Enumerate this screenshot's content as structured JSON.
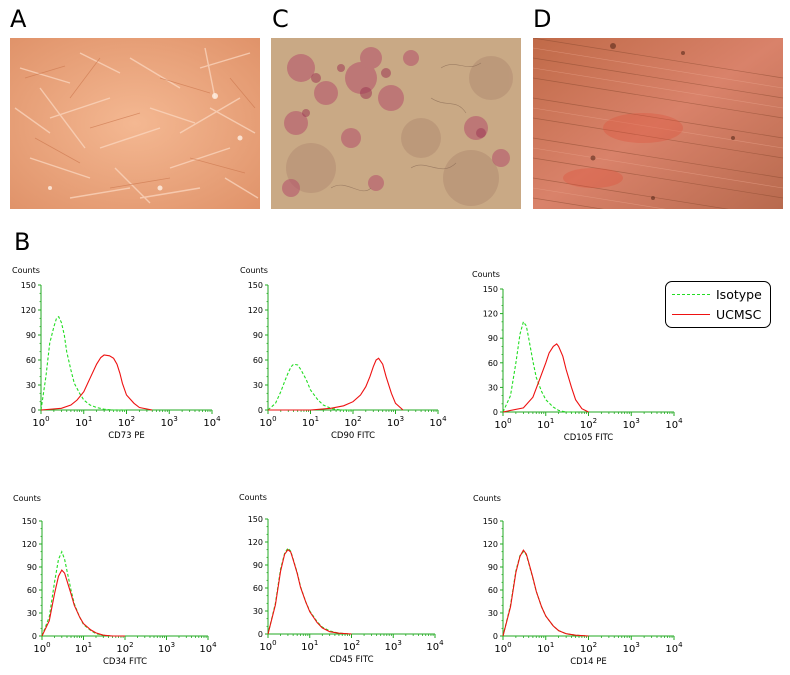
{
  "panels": {
    "a": "A",
    "b": "B",
    "c": "C",
    "d": "D"
  },
  "legend": {
    "isotype": "Isotype",
    "ucmsc": "UCMSC"
  },
  "colors": {
    "isotype": "#22dd22",
    "ucmsc": "#ee1111",
    "axis": "#22aa22"
  },
  "chart_data": [
    {
      "type": "line",
      "title": "",
      "ylabel": "Counts",
      "xlabel": "CD73 PE",
      "x_scale": "log",
      "xlim": [
        1,
        10000
      ],
      "ylim": [
        0,
        150
      ],
      "yticks": [
        "0",
        "30",
        "60",
        "90",
        "120",
        "150"
      ],
      "series": [
        {
          "name": "Isotype",
          "x": [
            1,
            1.3,
            1.6,
            2,
            2.3,
            2.6,
            3,
            3.5,
            4,
            5,
            6,
            8,
            10,
            14,
            20,
            30,
            50,
            100
          ],
          "values": [
            0,
            40,
            80,
            100,
            110,
            112,
            105,
            90,
            70,
            48,
            32,
            20,
            12,
            6,
            3,
            1,
            0,
            0
          ]
        },
        {
          "name": "UCMSC",
          "x": [
            1,
            3,
            5,
            7,
            10,
            14,
            20,
            25,
            30,
            40,
            50,
            60,
            70,
            80,
            100,
            150,
            200,
            400
          ],
          "values": [
            0,
            2,
            6,
            12,
            22,
            38,
            55,
            63,
            66,
            65,
            62,
            55,
            44,
            32,
            18,
            8,
            3,
            0
          ]
        }
      ]
    },
    {
      "type": "line",
      "title": "",
      "ylabel": "Counts",
      "xlabel": "CD90 FITC",
      "x_scale": "log",
      "xlim": [
        1,
        10000
      ],
      "ylim": [
        0,
        150
      ],
      "yticks": [
        "0",
        "30",
        "60",
        "90",
        "120",
        "150"
      ],
      "series": [
        {
          "name": "Isotype",
          "x": [
            1,
            1.5,
            2,
            2.5,
            3,
            3.5,
            4,
            5,
            6,
            8,
            10,
            15,
            20,
            30,
            50,
            100
          ],
          "values": [
            0,
            8,
            22,
            35,
            45,
            52,
            55,
            54,
            48,
            36,
            24,
            12,
            6,
            2,
            0,
            0
          ]
        },
        {
          "name": "UCMSC",
          "x": [
            1,
            10,
            30,
            60,
            100,
            150,
            200,
            250,
            300,
            350,
            400,
            500,
            600,
            800,
            1000,
            1500
          ],
          "values": [
            0,
            0,
            2,
            5,
            10,
            18,
            28,
            40,
            52,
            60,
            62,
            55,
            40,
            20,
            8,
            0
          ]
        }
      ]
    },
    {
      "type": "line",
      "title": "",
      "ylabel": "Counts",
      "xlabel": "CD105 FITC",
      "x_scale": "log",
      "xlim": [
        1,
        10000
      ],
      "ylim": [
        0,
        150
      ],
      "yticks": [
        "0",
        "30",
        "60",
        "90",
        "120",
        "150"
      ],
      "series": [
        {
          "name": "Isotype",
          "x": [
            1,
            1.5,
            2,
            2.5,
            3,
            3.5,
            4,
            5,
            6,
            8,
            10,
            15,
            20,
            30,
            50
          ],
          "values": [
            0,
            20,
            60,
            95,
            110,
            105,
            90,
            62,
            42,
            25,
            15,
            6,
            2,
            0,
            0
          ]
        },
        {
          "name": "UCMSC",
          "x": [
            1,
            3,
            5,
            7,
            10,
            12,
            15,
            18,
            20,
            25,
            30,
            40,
            50,
            70,
            100
          ],
          "values": [
            0,
            5,
            18,
            38,
            60,
            72,
            80,
            83,
            80,
            68,
            52,
            30,
            15,
            4,
            0
          ]
        }
      ]
    },
    {
      "type": "line",
      "title": "",
      "ylabel": "Counts",
      "xlabel": "CD34 FITC",
      "x_scale": "log",
      "xlim": [
        1,
        10000
      ],
      "ylim": [
        0,
        150
      ],
      "yticks": [
        "0",
        "30",
        "60",
        "90",
        "120",
        "150"
      ],
      "series": [
        {
          "name": "Isotype",
          "x": [
            1,
            1.5,
            2,
            2.5,
            3,
            3.5,
            4,
            5,
            6,
            8,
            10,
            15,
            20,
            30,
            50,
            100
          ],
          "values": [
            0,
            25,
            70,
            100,
            110,
            100,
            85,
            60,
            42,
            25,
            15,
            7,
            3,
            1,
            0,
            0
          ]
        },
        {
          "name": "UCMSC",
          "x": [
            1,
            1.5,
            2,
            2.5,
            3,
            3.5,
            4,
            5,
            6,
            8,
            10,
            15,
            20,
            30,
            50,
            100
          ],
          "values": [
            0,
            20,
            55,
            78,
            86,
            82,
            72,
            55,
            40,
            25,
            16,
            8,
            4,
            1,
            0,
            0
          ]
        }
      ]
    },
    {
      "type": "line",
      "title": "",
      "ylabel": "Counts",
      "xlabel": "CD45 FITC",
      "x_scale": "log",
      "xlim": [
        1,
        10000
      ],
      "ylim": [
        0,
        150
      ],
      "yticks": [
        "0",
        "30",
        "60",
        "90",
        "120",
        "150"
      ],
      "series": [
        {
          "name": "Isotype",
          "x": [
            1,
            1.5,
            2,
            2.5,
            3,
            3.5,
            4,
            5,
            6,
            8,
            10,
            15,
            20,
            30,
            50,
            100
          ],
          "values": [
            0,
            40,
            85,
            105,
            112,
            108,
            98,
            80,
            62,
            42,
            30,
            16,
            9,
            4,
            1,
            0
          ]
        },
        {
          "name": "UCMSC",
          "x": [
            1,
            1.5,
            2,
            2.5,
            3,
            3.5,
            4,
            5,
            6,
            8,
            10,
            15,
            20,
            30,
            50,
            100
          ],
          "values": [
            0,
            38,
            82,
            104,
            110,
            107,
            97,
            79,
            61,
            42,
            29,
            15,
            8,
            3,
            1,
            0
          ]
        }
      ]
    },
    {
      "type": "line",
      "title": "",
      "ylabel": "Counts",
      "xlabel": "CD14 PE",
      "x_scale": "log",
      "xlim": [
        1,
        10000
      ],
      "ylim": [
        0,
        150
      ],
      "yticks": [
        "0",
        "30",
        "60",
        "90",
        "120",
        "150"
      ],
      "series": [
        {
          "name": "Isotype",
          "x": [
            1,
            1.5,
            2,
            2.5,
            3,
            3.5,
            4,
            5,
            6,
            8,
            10,
            15,
            20,
            30,
            50,
            100
          ],
          "values": [
            0,
            40,
            85,
            105,
            110,
            106,
            95,
            75,
            58,
            38,
            26,
            13,
            7,
            3,
            1,
            0
          ]
        },
        {
          "name": "UCMSC",
          "x": [
            1,
            1.5,
            2,
            2.5,
            3,
            3.5,
            4,
            5,
            6,
            8,
            10,
            15,
            20,
            30,
            50,
            100
          ],
          "values": [
            0,
            38,
            83,
            104,
            112,
            107,
            96,
            76,
            58,
            38,
            26,
            13,
            7,
            3,
            1,
            0
          ]
        }
      ]
    }
  ]
}
